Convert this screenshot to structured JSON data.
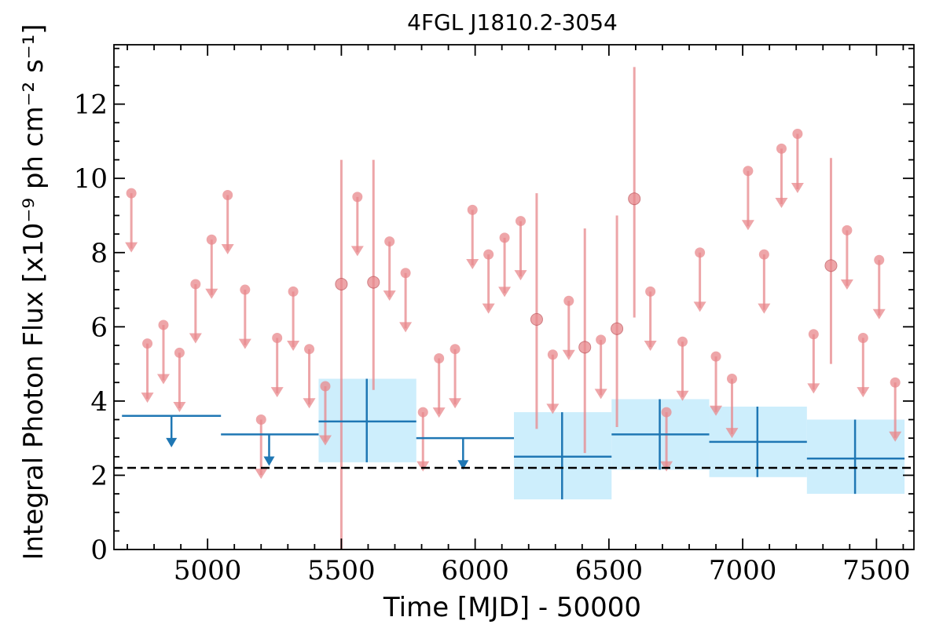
{
  "chart_data": {
    "type": "scatter",
    "title": "4FGL J1810.2-3054",
    "xlabel": "Time [MJD] - 50000",
    "ylabel": "Integral Photon Flux [x10⁻⁹ ph cm⁻² s⁻¹]",
    "xlim": [
      4650,
      7640
    ],
    "ylim": [
      0,
      13.6
    ],
    "x_ticks": [
      5000,
      5500,
      6000,
      6500,
      7000,
      7500
    ],
    "y_ticks": [
      0,
      2,
      4,
      6,
      8,
      10,
      12
    ],
    "grid": false,
    "colors": {
      "short_bins": "#e8888c",
      "long_bins": "#1f77b4",
      "long_band": "#cdeefc",
      "reference_line": "#000000"
    },
    "reference_line": {
      "y": 2.2,
      "style": "dashed"
    },
    "series": [
      {
        "bin_width": 60,
        "upper_limits": [
          {
            "x": 4715,
            "y": 9.6
          },
          {
            "x": 4775,
            "y": 5.55
          },
          {
            "x": 4835,
            "y": 6.05
          },
          {
            "x": 4895,
            "y": 5.3
          },
          {
            "x": 4955,
            "y": 7.15
          },
          {
            "x": 5015,
            "y": 8.35
          },
          {
            "x": 5075,
            "y": 9.55
          },
          {
            "x": 5140,
            "y": 7.0
          },
          {
            "x": 5200,
            "y": 3.5
          },
          {
            "x": 5260,
            "y": 5.7
          },
          {
            "x": 5320,
            "y": 6.95
          },
          {
            "x": 5380,
            "y": 5.4
          },
          {
            "x": 5440,
            "y": 4.4
          },
          {
            "x": 5560,
            "y": 9.5
          },
          {
            "x": 5680,
            "y": 8.3
          },
          {
            "x": 5740,
            "y": 7.45
          },
          {
            "x": 5805,
            "y": 3.7
          },
          {
            "x": 5865,
            "y": 5.15
          },
          {
            "x": 5925,
            "y": 5.4
          },
          {
            "x": 5990,
            "y": 9.15
          },
          {
            "x": 6050,
            "y": 7.95
          },
          {
            "x": 6110,
            "y": 8.4
          },
          {
            "x": 6170,
            "y": 8.85
          },
          {
            "x": 6290,
            "y": 5.25
          },
          {
            "x": 6350,
            "y": 6.7
          },
          {
            "x": 6470,
            "y": 5.65
          },
          {
            "x": 6655,
            "y": 6.95
          },
          {
            "x": 6715,
            "y": 3.7
          },
          {
            "x": 6775,
            "y": 5.6
          },
          {
            "x": 6840,
            "y": 8.0
          },
          {
            "x": 6900,
            "y": 5.2
          },
          {
            "x": 6960,
            "y": 4.6
          },
          {
            "x": 7020,
            "y": 10.2
          },
          {
            "x": 7080,
            "y": 7.95
          },
          {
            "x": 7145,
            "y": 10.8
          },
          {
            "x": 7205,
            "y": 11.2
          },
          {
            "x": 7265,
            "y": 5.8
          },
          {
            "x": 7390,
            "y": 8.6
          },
          {
            "x": 7450,
            "y": 5.7
          },
          {
            "x": 7510,
            "y": 7.8
          },
          {
            "x": 7570,
            "y": 4.5
          }
        ],
        "detections": [
          {
            "x": 5500,
            "y": 7.15,
            "ylo": 0,
            "yhi": 10.5
          },
          {
            "x": 5620,
            "y": 7.2,
            "ylo": 4.3,
            "yhi": 10.5
          },
          {
            "x": 6230,
            "y": 6.2,
            "ylo": 3.25,
            "yhi": 9.6
          },
          {
            "x": 6410,
            "y": 5.45,
            "ylo": 2.6,
            "yhi": 8.65
          },
          {
            "x": 6530,
            "y": 5.95,
            "ylo": 3.3,
            "yhi": 9.0
          },
          {
            "x": 6595,
            "y": 9.45,
            "ylo": 6.25,
            "yhi": 13.0
          },
          {
            "x": 7330,
            "y": 7.65,
            "ylo": 5.0,
            "yhi": 10.55
          }
        ]
      },
      {
        "bin_width": 365,
        "upper_limits": [
          {
            "x": 4865,
            "xlo": 4680,
            "xhi": 5050,
            "y": 3.6
          },
          {
            "x": 5230,
            "xlo": 5050,
            "xhi": 5415,
            "y": 3.1
          },
          {
            "x": 5955,
            "xlo": 5780,
            "xhi": 6145,
            "y": 3.0
          }
        ],
        "detections": [
          {
            "x": 5595,
            "xlo": 5415,
            "xhi": 5780,
            "y": 3.45,
            "ylo": 2.35,
            "yhi": 4.6
          },
          {
            "x": 6325,
            "xlo": 6145,
            "xhi": 6510,
            "y": 2.5,
            "ylo": 1.35,
            "yhi": 3.7
          },
          {
            "x": 6690,
            "xlo": 6510,
            "xhi": 6875,
            "y": 3.1,
            "ylo": 2.15,
            "yhi": 4.05
          },
          {
            "x": 7055,
            "xlo": 6875,
            "xhi": 7240,
            "y": 2.9,
            "ylo": 1.95,
            "yhi": 3.85
          },
          {
            "x": 7420,
            "xlo": 7240,
            "xhi": 7605,
            "y": 2.45,
            "ylo": 1.5,
            "yhi": 3.5
          }
        ]
      }
    ]
  }
}
